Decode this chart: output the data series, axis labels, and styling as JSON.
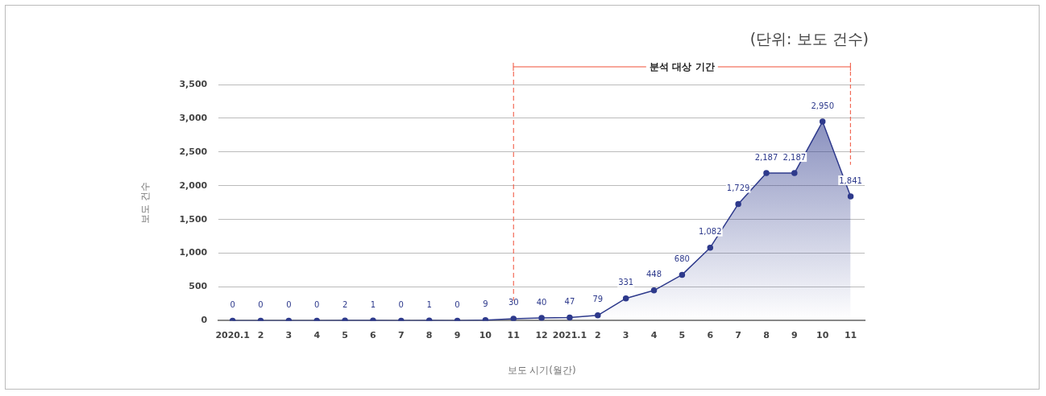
{
  "chart_data": {
    "type": "area",
    "xlabel": "보도 시기(월간)",
    "ylabel": "보도 건수",
    "annotations": [
      "(단위: 보도 건수)",
      "분석 대상 기간"
    ],
    "categories": [
      "2020.1",
      "2",
      "3",
      "4",
      "5",
      "6",
      "7",
      "8",
      "9",
      "10",
      "11",
      "12",
      "2021.1",
      "2",
      "3",
      "4",
      "5",
      "6",
      "7",
      "8",
      "9",
      "10",
      "11"
    ],
    "series": [
      {
        "color": "#2e3a8c",
        "values": [
          0,
          0,
          0,
          0,
          2,
          1,
          0,
          1,
          0,
          9,
          30,
          40,
          47,
          79,
          331,
          448,
          680,
          1082,
          1729,
          2187,
          2187,
          2950,
          1841
        ],
        "value_labels": [
          "0",
          "0",
          "0",
          "0",
          "2",
          "1",
          "0",
          "1",
          "0",
          "9",
          "30",
          "40",
          "47",
          "79",
          "331",
          "448",
          "680",
          "1,082",
          "1,729",
          "2,187",
          "2,187",
          "2,950",
          "1,841"
        ]
      }
    ],
    "ylim": [
      0,
      3500
    ],
    "yticks": [
      0,
      {
        "value": 500,
        "label": "500"
      },
      {
        "value": 1000,
        "label": "1,000"
      },
      {
        "value": 1500,
        "label": "1,500"
      },
      {
        "value": 2000,
        "label": "2,000"
      },
      {
        "value": 2500,
        "label": "2,500"
      },
      {
        "value": 3000,
        "label": "3,000"
      },
      {
        "value": 3500,
        "label": "3,500"
      }
    ],
    "ref_lines": [
      {
        "axis": "x",
        "value": "11",
        "color": "#f04e37",
        "line_style": "dashed"
      }
    ],
    "grid": "y",
    "legend": false,
    "marker": "circle",
    "line_style": "solid"
  }
}
